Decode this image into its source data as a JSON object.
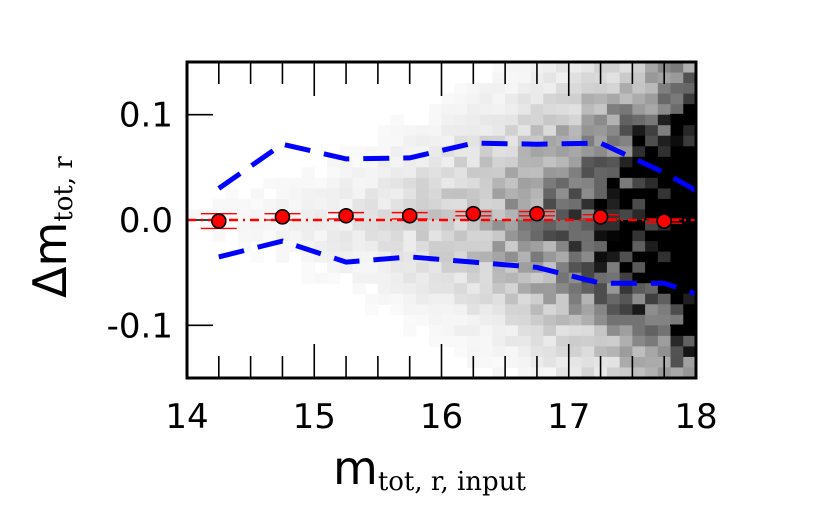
{
  "chart_data": {
    "type": "scatter",
    "title": "",
    "xlabel": {
      "main": "m",
      "sub": "tot, r, input"
    },
    "ylabel": {
      "main": "Δm",
      "sub": "tot, r"
    },
    "xlim": [
      14,
      18
    ],
    "ylim": [
      -0.15,
      0.15
    ],
    "xticks": [
      14,
      15,
      16,
      17,
      18
    ],
    "xtick_labels": [
      "14",
      "15",
      "16",
      "17",
      "18"
    ],
    "yticks": [
      -0.1,
      0.0,
      0.1
    ],
    "ytick_labels": [
      "-0.1",
      "0.0",
      "0.1"
    ],
    "grid": false,
    "legend": "none",
    "background": {
      "type": "heatmap",
      "colormap": "greyscale",
      "x_bins": 40,
      "y_bins": 30
    },
    "series": [
      {
        "kind": "binned-median-points",
        "color": "#ff0000",
        "x": [
          14.25,
          14.75,
          15.25,
          15.75,
          16.25,
          16.75,
          17.25,
          17.75
        ],
        "y": [
          -0.001,
          0.003,
          0.004,
          0.004,
          0.006,
          0.006,
          0.003,
          -0.001
        ],
        "yerr": [
          0.007,
          0.003,
          0.003,
          0.003,
          0.002,
          0.002,
          0.002,
          0.002
        ]
      },
      {
        "kind": "median-line",
        "style": "dash-dot",
        "color": "#ff0000",
        "x": [
          14.0,
          18.0
        ],
        "y": [
          0.0,
          0.0
        ]
      },
      {
        "kind": "upper-percentile",
        "style": "dashed",
        "color": "#0000ff",
        "x": [
          14.25,
          14.75,
          15.25,
          15.75,
          16.25,
          16.75,
          17.25,
          17.75,
          18.0
        ],
        "y": [
          0.03,
          0.072,
          0.058,
          0.059,
          0.073,
          0.072,
          0.073,
          0.045,
          0.028
        ]
      },
      {
        "kind": "lower-percentile",
        "style": "dashed",
        "color": "#0000ff",
        "x": [
          14.25,
          14.75,
          15.25,
          15.75,
          16.25,
          16.75,
          17.25,
          17.75,
          18.0
        ],
        "y": [
          -0.035,
          -0.02,
          -0.04,
          -0.035,
          -0.04,
          -0.045,
          -0.06,
          -0.06,
          -0.07
        ]
      }
    ]
  }
}
